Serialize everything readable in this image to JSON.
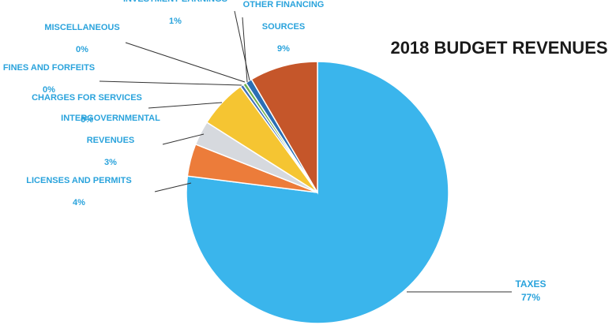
{
  "chart_data": {
    "type": "pie",
    "title": "2018 BUDGET REVENUES",
    "slices": [
      {
        "label_lines": [
          "TAXES"
        ],
        "pct_label": "77%",
        "value": 77,
        "color": "#3ab5ec"
      },
      {
        "label_lines": [
          "LICENSES AND PERMITS"
        ],
        "pct_label": "4%",
        "value": 4,
        "color": "#ec7c3a"
      },
      {
        "label_lines": [
          "INTERGOVERNMENTAL",
          "REVENUES"
        ],
        "pct_label": "3%",
        "value": 3,
        "color": "#d6d9de"
      },
      {
        "label_lines": [
          "CHARGES FOR SERVICES"
        ],
        "pct_label": "6%",
        "value": 6,
        "color": "#f5c532"
      },
      {
        "label_lines": [
          "FINES AND FORFEITS"
        ],
        "pct_label": "0%",
        "value": 0.4,
        "color": "#3d6fb8"
      },
      {
        "label_lines": [
          "MISCELLANEOUS"
        ],
        "pct_label": "0%",
        "value": 0.4,
        "color": "#6fb04a"
      },
      {
        "label_lines": [
          "INVESTMENT EARNINGS"
        ],
        "pct_label": "1%",
        "value": 0.8,
        "color": "#2a6fb5"
      },
      {
        "label_lines": [
          "OTHER FINANCING",
          "SOURCES"
        ],
        "pct_label": "9%",
        "value": 8.4,
        "color": "#c5562a"
      }
    ]
  }
}
